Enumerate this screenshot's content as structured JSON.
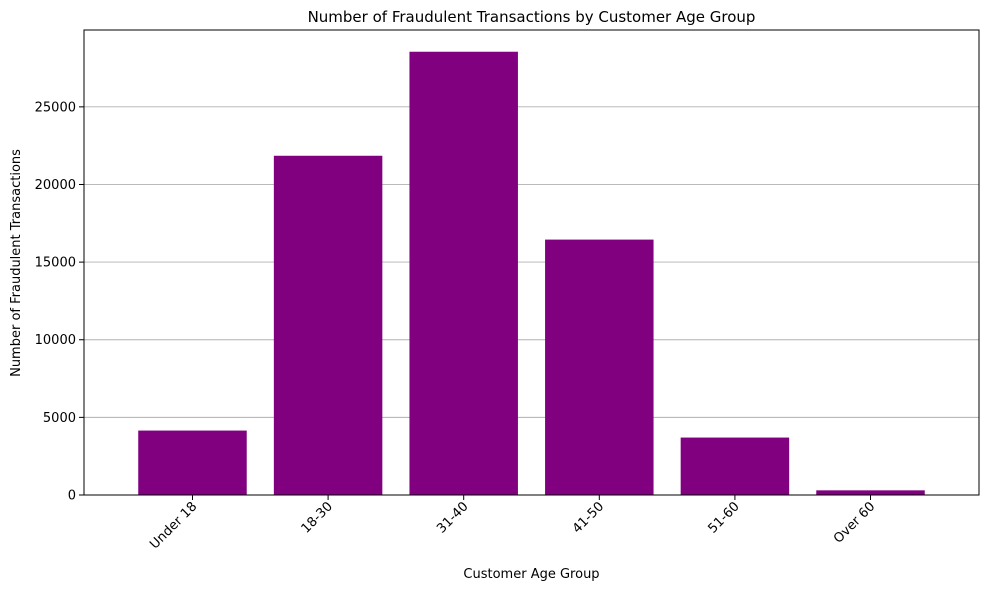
{
  "chart_data": {
    "type": "bar",
    "title": "Number of Fraudulent Transactions by Customer Age Group",
    "xlabel": "Customer Age Group",
    "ylabel": "Number of Fraudulent Transactions",
    "categories": [
      "Under 18",
      "18-30",
      "31-40",
      "41-50",
      "51-60",
      "Over 60"
    ],
    "values": [
      4150,
      21850,
      28550,
      16450,
      3700,
      300
    ],
    "ylim": [
      0,
      29950
    ],
    "yticks": [
      0,
      5000,
      10000,
      15000,
      20000,
      25000
    ],
    "ytick_labels": [
      "0",
      "5000",
      "10000",
      "15000",
      "20000",
      "25000"
    ],
    "grid": "y-axis",
    "bar_color": "#800080",
    "grid_color": "#b0b0b0",
    "xtick_rotation": 45
  }
}
